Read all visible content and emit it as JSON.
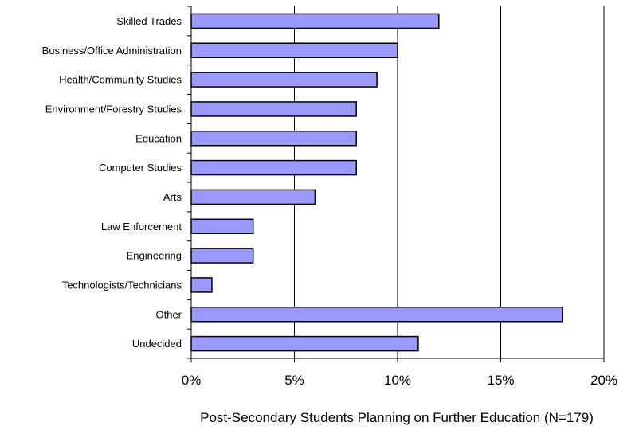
{
  "chart_data": {
    "type": "bar",
    "orientation": "horizontal",
    "categories": [
      "Skilled Trades",
      "Business/Office Administration",
      "Health/Community Studies",
      "Environment/Forestry Studies",
      "Education",
      "Computer Studies",
      "Arts",
      "Law Enforcement",
      "Engineering",
      "Technologists/Technicians",
      "Other",
      "Undecided"
    ],
    "values": [
      12,
      10,
      9,
      8,
      8,
      8,
      6,
      3,
      3,
      1,
      18,
      11
    ],
    "value_unit": "%",
    "xlim": [
      0,
      20
    ],
    "xticks": [
      0,
      5,
      10,
      15,
      20
    ],
    "xtick_labels": [
      "0%",
      "5%",
      "10%",
      "15%",
      "20%"
    ],
    "xlabel": "Post-Secondary Students Planning on Further Education (N=179)",
    "ylabel": "",
    "title": "",
    "grid": "vertical gridlines",
    "legend": "none",
    "colors": {
      "bar_fill": "#9999ff",
      "bar_stroke": "#000000",
      "grid": "#000000",
      "background": "#ffffff"
    }
  }
}
